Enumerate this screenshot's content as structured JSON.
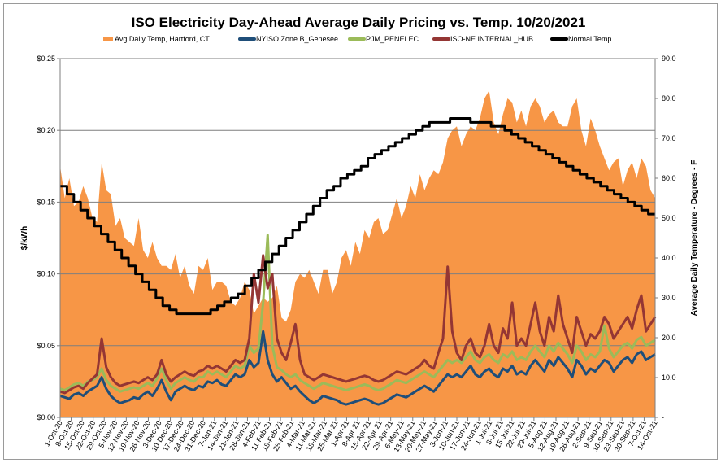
{
  "chart_data": {
    "type": "area",
    "title": "ISO Electricity Day-Ahead Average Daily Pricing vs. Temp. 10/20/2021",
    "ylabel": "$/kWh",
    "y2label": "Average Daily Temperature - Degrees - F",
    "ylim": [
      0,
      0.25
    ],
    "y2lim": [
      0,
      90
    ],
    "y_ticks": [
      "$0.00",
      "$0.05",
      "$0.10",
      "$0.15",
      "$0.20",
      "$0.25"
    ],
    "y2_ticks": [
      "-",
      "10.0",
      "20.0",
      "30.0",
      "40.0",
      "50.0",
      "60.0",
      "70.0",
      "80.0",
      "90.0"
    ],
    "grid": "horizontal major",
    "legend_position": "top",
    "x_ticks": [
      "1-Oct-20",
      "8-Oct-20",
      "15-Oct-20",
      "22-Oct-20",
      "29-Oct-20",
      "5-Nov-20",
      "12-Nov-20",
      "19-Nov-20",
      "26-Nov-20",
      "3-Dec-20",
      "10-Dec-20",
      "17-Dec-20",
      "24-Dec-20",
      "31-Dec-20",
      "7-Jan-21",
      "14-Jan-21",
      "21-Jan-21",
      "28-Jan-21",
      "4-Feb-21",
      "11-Feb-21",
      "18-Feb-21",
      "25-Feb-21",
      "4-Mar-21",
      "11-Mar-21",
      "18-Mar-21",
      "25-Mar-21",
      "1-Apr-21",
      "8-Apr-21",
      "15-Apr-21",
      "22-Apr-21",
      "29-Apr-21",
      "6-May-21",
      "13-May-21",
      "20-May-21",
      "27-May-21",
      "3-Jun-21",
      "10-Jun-21",
      "17-Jun-21",
      "24-Jun-21",
      "1-Jul-21",
      "8-Jul-21",
      "15-Jul-21",
      "22-Jul-21",
      "29-Jul-21",
      "5-Aug-21",
      "12-Aug-21",
      "19-Aug-21",
      "26-Aug-21",
      "2-Sep-21",
      "9-Sep-21",
      "16-Sep-21",
      "23-Sep-21",
      "30-Sep-21",
      "7-Oct-21",
      "14-Oct-21"
    ],
    "series": [
      {
        "name": "Avg Daily Temp, Hartford, CT",
        "axis": "secondary",
        "kind": "area",
        "color": "#F79646",
        "values": [
          63,
          55,
          60,
          53,
          54,
          58,
          55,
          50,
          49,
          64,
          57,
          56,
          48,
          50,
          45,
          44,
          43,
          50,
          42,
          40,
          44,
          40,
          38,
          38,
          37,
          41,
          35,
          38,
          33,
          31,
          38,
          37,
          40,
          32,
          34,
          34,
          33,
          29,
          28,
          30,
          34,
          32,
          26,
          28,
          30,
          29,
          30,
          33,
          25,
          24,
          27,
          34,
          36,
          35,
          37,
          34,
          31,
          37,
          37,
          31,
          34,
          40,
          42,
          38,
          44,
          41,
          47,
          45,
          49,
          50,
          46,
          47,
          51,
          55,
          50,
          53,
          58,
          55,
          61,
          57,
          60,
          62,
          61,
          64,
          70,
          72,
          73,
          68,
          71,
          73,
          72,
          75,
          80,
          82,
          74,
          71,
          76,
          80,
          79,
          74,
          77,
          73,
          78,
          80,
          78,
          74,
          76,
          77,
          74,
          73,
          73,
          78,
          80,
          72,
          68,
          75,
          72,
          68,
          65,
          62,
          64,
          65,
          58,
          62,
          64,
          60,
          65,
          63,
          57,
          55
        ]
      },
      {
        "name": "NYISO Zone B_Genesee",
        "axis": "primary",
        "kind": "line",
        "color": "#1F4E79",
        "values": [
          0.015,
          0.014,
          0.013,
          0.016,
          0.017,
          0.015,
          0.018,
          0.02,
          0.022,
          0.028,
          0.02,
          0.015,
          0.012,
          0.01,
          0.011,
          0.012,
          0.014,
          0.013,
          0.016,
          0.018,
          0.015,
          0.02,
          0.026,
          0.018,
          0.012,
          0.018,
          0.02,
          0.022,
          0.02,
          0.019,
          0.022,
          0.021,
          0.025,
          0.024,
          0.026,
          0.023,
          0.022,
          0.026,
          0.03,
          0.028,
          0.03,
          0.04,
          0.035,
          0.038,
          0.06,
          0.04,
          0.03,
          0.025,
          0.028,
          0.024,
          0.02,
          0.022,
          0.018,
          0.015,
          0.012,
          0.01,
          0.012,
          0.015,
          0.014,
          0.013,
          0.012,
          0.01,
          0.009,
          0.01,
          0.011,
          0.012,
          0.013,
          0.012,
          0.01,
          0.009,
          0.01,
          0.012,
          0.014,
          0.016,
          0.015,
          0.014,
          0.016,
          0.018,
          0.02,
          0.022,
          0.02,
          0.018,
          0.022,
          0.026,
          0.03,
          0.028,
          0.03,
          0.028,
          0.032,
          0.036,
          0.03,
          0.028,
          0.032,
          0.034,
          0.03,
          0.028,
          0.034,
          0.032,
          0.036,
          0.03,
          0.032,
          0.03,
          0.036,
          0.04,
          0.036,
          0.032,
          0.04,
          0.036,
          0.042,
          0.038,
          0.034,
          0.028,
          0.04,
          0.036,
          0.03,
          0.034,
          0.032,
          0.036,
          0.04,
          0.038,
          0.032,
          0.036,
          0.04,
          0.042,
          0.038,
          0.044,
          0.046,
          0.04,
          0.042,
          0.044
        ]
      },
      {
        "name": "PJM_PENELEC",
        "axis": "primary",
        "kind": "line",
        "color": "#9BBB59",
        "values": [
          0.02,
          0.019,
          0.021,
          0.023,
          0.024,
          0.022,
          0.025,
          0.026,
          0.028,
          0.034,
          0.026,
          0.022,
          0.02,
          0.018,
          0.019,
          0.02,
          0.021,
          0.02,
          0.022,
          0.024,
          0.022,
          0.027,
          0.034,
          0.026,
          0.02,
          0.024,
          0.026,
          0.028,
          0.026,
          0.025,
          0.028,
          0.028,
          0.032,
          0.03,
          0.032,
          0.03,
          0.028,
          0.032,
          0.036,
          0.034,
          0.036,
          0.05,
          0.045,
          0.048,
          0.08,
          0.127,
          0.05,
          0.035,
          0.033,
          0.03,
          0.028,
          0.03,
          0.026,
          0.024,
          0.022,
          0.02,
          0.022,
          0.024,
          0.023,
          0.022,
          0.021,
          0.02,
          0.019,
          0.02,
          0.021,
          0.022,
          0.023,
          0.022,
          0.02,
          0.019,
          0.02,
          0.022,
          0.024,
          0.026,
          0.025,
          0.024,
          0.026,
          0.028,
          0.03,
          0.032,
          0.03,
          0.028,
          0.032,
          0.036,
          0.04,
          0.038,
          0.04,
          0.038,
          0.042,
          0.046,
          0.04,
          0.038,
          0.042,
          0.044,
          0.04,
          0.038,
          0.044,
          0.042,
          0.046,
          0.04,
          0.042,
          0.04,
          0.046,
          0.05,
          0.046,
          0.042,
          0.05,
          0.046,
          0.052,
          0.048,
          0.044,
          0.038,
          0.05,
          0.046,
          0.04,
          0.044,
          0.042,
          0.046,
          0.064,
          0.048,
          0.042,
          0.046,
          0.05,
          0.052,
          0.048,
          0.054,
          0.056,
          0.05,
          0.052,
          0.054
        ]
      },
      {
        "name": "ISO-NE INTERNAL_HUB",
        "axis": "primary",
        "kind": "line",
        "color": "#943634",
        "values": [
          0.018,
          0.017,
          0.019,
          0.021,
          0.022,
          0.02,
          0.024,
          0.027,
          0.03,
          0.055,
          0.035,
          0.028,
          0.024,
          0.022,
          0.023,
          0.024,
          0.025,
          0.024,
          0.026,
          0.028,
          0.026,
          0.03,
          0.04,
          0.03,
          0.025,
          0.028,
          0.03,
          0.032,
          0.03,
          0.029,
          0.032,
          0.033,
          0.036,
          0.034,
          0.036,
          0.034,
          0.032,
          0.036,
          0.04,
          0.038,
          0.04,
          0.055,
          0.1,
          0.08,
          0.113,
          0.09,
          0.1,
          0.055,
          0.045,
          0.04,
          0.052,
          0.065,
          0.04,
          0.03,
          0.028,
          0.026,
          0.028,
          0.03,
          0.029,
          0.028,
          0.027,
          0.026,
          0.025,
          0.026,
          0.027,
          0.028,
          0.029,
          0.028,
          0.026,
          0.025,
          0.026,
          0.028,
          0.03,
          0.032,
          0.031,
          0.03,
          0.032,
          0.034,
          0.036,
          0.04,
          0.036,
          0.034,
          0.045,
          0.055,
          0.105,
          0.06,
          0.045,
          0.04,
          0.05,
          0.055,
          0.045,
          0.042,
          0.05,
          0.065,
          0.05,
          0.045,
          0.062,
          0.055,
          0.08,
          0.05,
          0.055,
          0.05,
          0.065,
          0.08,
          0.06,
          0.05,
          0.07,
          0.06,
          0.085,
          0.065,
          0.055,
          0.045,
          0.07,
          0.06,
          0.05,
          0.058,
          0.055,
          0.06,
          0.07,
          0.065,
          0.055,
          0.06,
          0.065,
          0.07,
          0.062,
          0.075,
          0.085,
          0.06,
          0.065,
          0.07
        ]
      },
      {
        "name": "Normal Temp.",
        "axis": "secondary",
        "kind": "line",
        "color": "#000000",
        "values": [
          58,
          56,
          54,
          52,
          50,
          48,
          46,
          44,
          42,
          40,
          38,
          36,
          34,
          32,
          30,
          28,
          27,
          26,
          26,
          26,
          26,
          26,
          27,
          28,
          29,
          30,
          31,
          33,
          35,
          37,
          39,
          41,
          43,
          45,
          47,
          49,
          51,
          53,
          55,
          57,
          58,
          60,
          61,
          62,
          63,
          65,
          66,
          67,
          68,
          69,
          70,
          71,
          72,
          73,
          74,
          74,
          74,
          75,
          75,
          75,
          74,
          74,
          74,
          73,
          73,
          72,
          71,
          70,
          69,
          68,
          67,
          66,
          65,
          64,
          63,
          62,
          61,
          60,
          59,
          58,
          57,
          56,
          55,
          54,
          53,
          52,
          51
        ]
      }
    ]
  }
}
